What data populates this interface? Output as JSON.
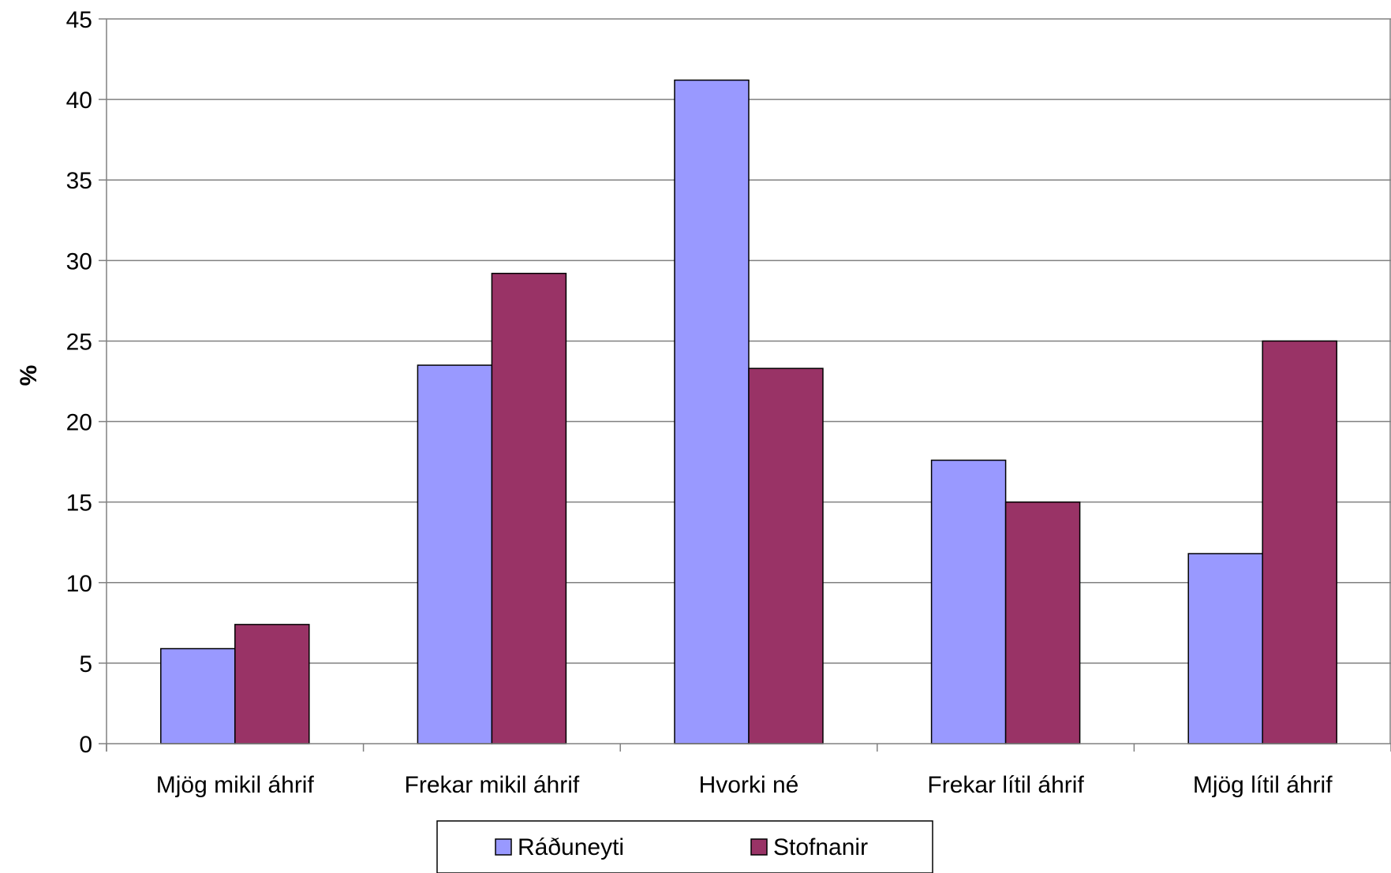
{
  "chart_data": {
    "type": "bar",
    "title": "",
    "xlabel": "",
    "ylabel": "%",
    "ylim": [
      0,
      45
    ],
    "yticks": [
      0,
      5,
      10,
      15,
      20,
      25,
      30,
      35,
      40,
      45
    ],
    "grid": true,
    "legend_position": "bottom",
    "categories": [
      "Mjög mikil áhrif",
      "Frekar mikil áhrif",
      "Hvorki né",
      "Frekar lítil áhrif",
      "Mjög lítil áhrif"
    ],
    "series": [
      {
        "name": "Ráðuneyti",
        "color": "#9999FF",
        "values": [
          5.9,
          23.5,
          41.2,
          17.6,
          11.8
        ]
      },
      {
        "name": "Stofnanir",
        "color": "#993366",
        "values": [
          7.4,
          29.2,
          23.3,
          15.0,
          25.0
        ]
      }
    ]
  }
}
